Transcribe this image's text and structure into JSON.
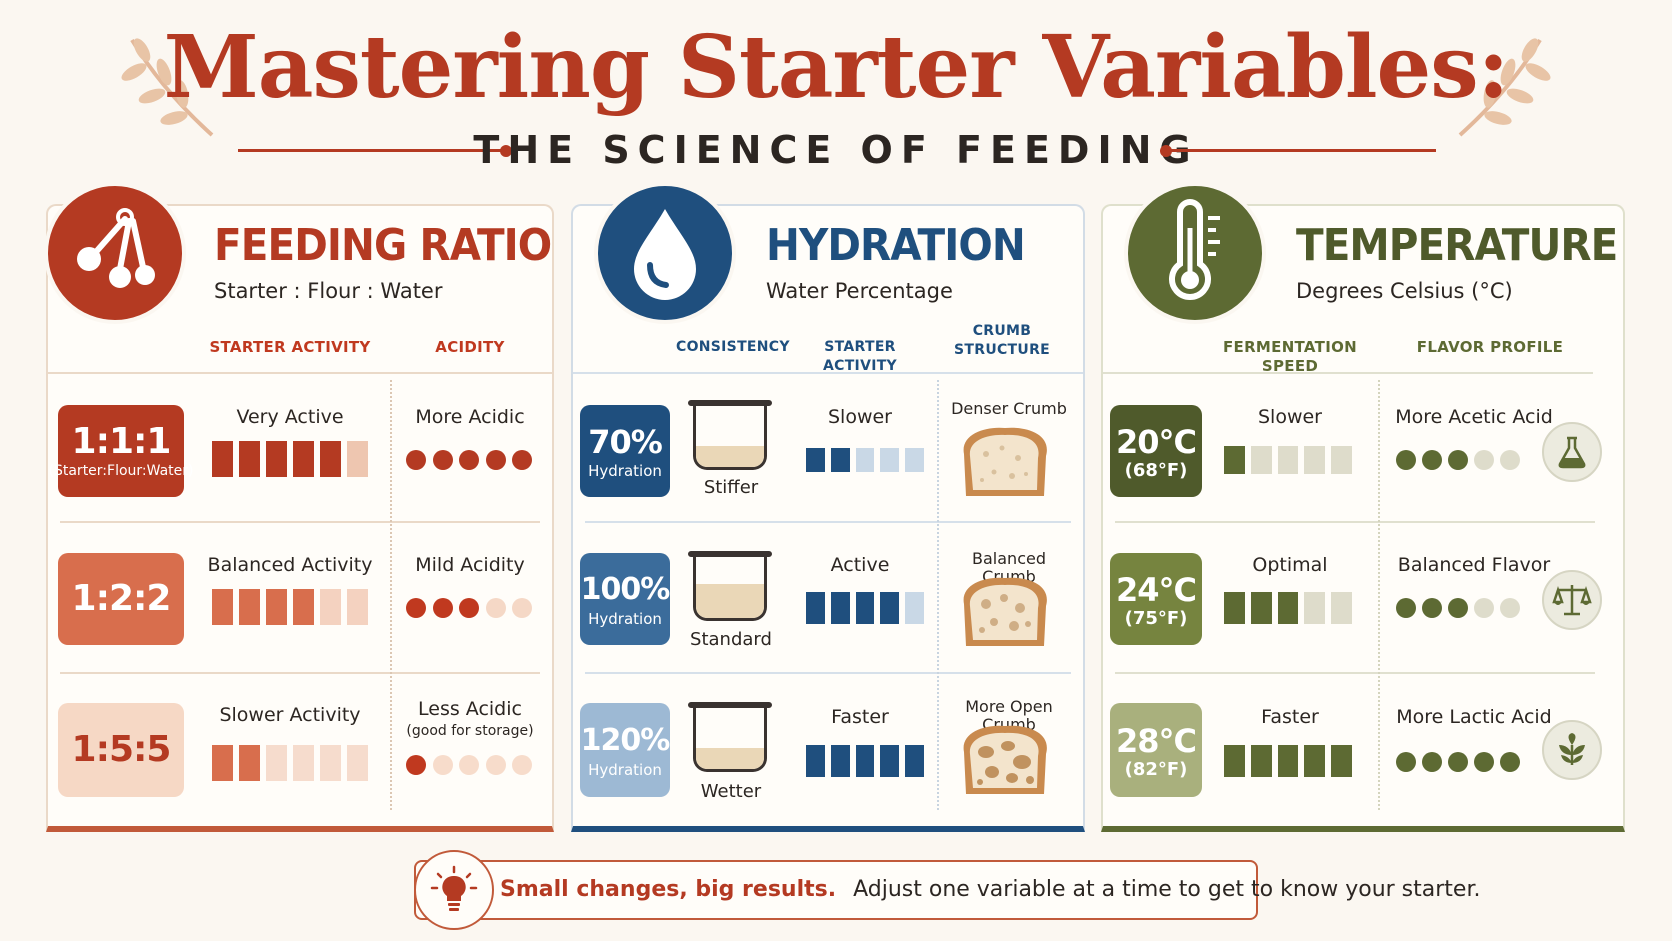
{
  "header": {
    "title": "Mastering Starter Variables:",
    "subtitle": "THE SCIENCE OF FEEDING"
  },
  "colors": {
    "red": "#b43a22",
    "blue": "#1f4f7e",
    "green": "#5d6a33",
    "background": "#fbf7f1"
  },
  "feeding": {
    "title": "FEEDING RATIO",
    "subtitle": "Starter : Flour : Water",
    "icon": "measuring-spoons-icon",
    "col_activity": "STARTER ACTIVITY",
    "col_acidity": "ACIDITY",
    "rows": [
      {
        "ratio": "1:1:1",
        "ratio_note": "(Starter:Flour:Water)",
        "activity": "Very Active",
        "activity_level": 5,
        "acidity": "More Acidic",
        "acidity_note": "",
        "acidity_level": 5
      },
      {
        "ratio": "1:2:2",
        "ratio_note": "",
        "activity": "Balanced Activity",
        "activity_level": 4,
        "acidity": "Mild Acidity",
        "acidity_note": "",
        "acidity_level": 3
      },
      {
        "ratio": "1:5:5",
        "ratio_note": "",
        "activity": "Slower Activity",
        "activity_level": 2,
        "acidity": "Less Acidic",
        "acidity_note": "(good for storage)",
        "acidity_level": 1
      }
    ]
  },
  "hydration": {
    "title": "HYDRATION",
    "subtitle": "Water Percentage",
    "icon": "water-drop-icon",
    "col_consistency": "CONSISTENCY",
    "col_activity": "STARTER ACTIVITY",
    "col_crumb": "CRUMB STRUCTURE",
    "rows": [
      {
        "percent": "70%",
        "unit": "Hydration",
        "consistency": "Stiffer",
        "fill_fraction": 0.35,
        "activity": "Slower",
        "activity_level": 2,
        "crumb": "Denser Crumb"
      },
      {
        "percent": "100%",
        "unit": "Hydration",
        "consistency": "Standard",
        "fill_fraction": 0.55,
        "activity": "Active",
        "activity_level": 4,
        "crumb": "Balanced Crumb"
      },
      {
        "percent": "120%",
        "unit": "Hydration",
        "consistency": "Wetter",
        "fill_fraction": 0.35,
        "activity": "Faster",
        "activity_level": 5,
        "crumb": "More Open Crumb"
      }
    ]
  },
  "temperature": {
    "title": "TEMPERATURE",
    "subtitle": "Degrees Celsius (°C)",
    "icon": "thermometer-icon",
    "col_speed": "FERMENTATION SPEED",
    "col_flavor": "FLAVOR PROFILE",
    "rows": [
      {
        "celsius": "20°C",
        "fahrenheit": "(68°F)",
        "speed": "Slower",
        "speed_level": 1,
        "flavor": "More Acetic Acid",
        "flavor_level": 3,
        "icon": "flask-icon"
      },
      {
        "celsius": "24°C",
        "fahrenheit": "(75°F)",
        "speed": "Optimal",
        "speed_level": 3,
        "flavor": "Balanced Flavor",
        "flavor_level": 3,
        "icon": "scales-icon"
      },
      {
        "celsius": "28°C",
        "fahrenheit": "(82°F)",
        "speed": "Faster",
        "speed_level": 5,
        "flavor": "More Lactic Acid",
        "flavor_level": 5,
        "icon": "leaf-sprout-icon"
      }
    ]
  },
  "footer": {
    "highlight": "Small changes, big results.",
    "text": "Adjust one variable at a time to get to know your starter.",
    "icon": "lightbulb-icon"
  }
}
